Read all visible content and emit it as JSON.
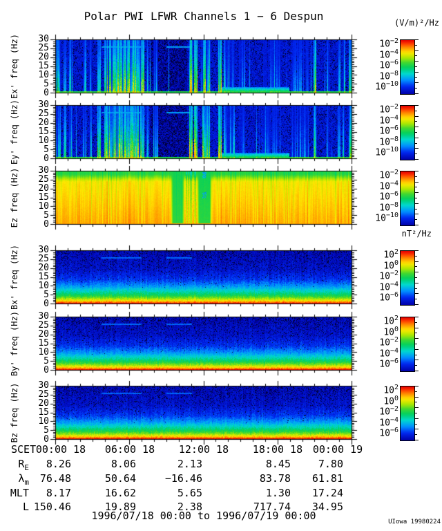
{
  "title": "Polar PWI LFWR Channels 1 − 6 Despun",
  "credit": "UIowa 19980224",
  "date_range": "1996/07/18 00:00 to 1996/07/19 00:00",
  "units": {
    "electric": "(V/m)²/Hz",
    "magnetic": "nT²/Hz"
  },
  "xaxis": {
    "prefix": "SCET",
    "tick_labels": [
      "00:00 18",
      "06:00 18",
      "12:00 18",
      "18:00 18",
      "00:00 19"
    ],
    "tick_hours": [
      0,
      6,
      12,
      18,
      24
    ]
  },
  "ephemeris": {
    "rows": [
      {
        "label": "R",
        "sub": "E",
        "values": [
          "8.26",
          "8.06",
          "2.13",
          "8.45",
          "7.80"
        ]
      },
      {
        "label": "λ",
        "sub": "m",
        "values": [
          "76.48",
          "50.64",
          "−16.46",
          "83.78",
          "61.81"
        ]
      },
      {
        "label": "MLT",
        "sub": "",
        "values": [
          "8.17",
          "16.62",
          "5.65",
          "1.30",
          "17.24"
        ]
      },
      {
        "label": "L",
        "sub": "",
        "values": [
          "150.46",
          "19.89",
          "2.38",
          "717.74",
          "34.95"
        ]
      }
    ]
  },
  "colormap_stops": [
    [
      0,
      "#000000"
    ],
    [
      0.07,
      "#00003a"
    ],
    [
      0.14,
      "#0000a8"
    ],
    [
      0.26,
      "#0028f0"
    ],
    [
      0.36,
      "#0090ff"
    ],
    [
      0.46,
      "#00d8d0"
    ],
    [
      0.56,
      "#00d060"
    ],
    [
      0.64,
      "#40d830"
    ],
    [
      0.72,
      "#b0e800"
    ],
    [
      0.8,
      "#ffe800"
    ],
    [
      0.88,
      "#ff9000"
    ],
    [
      0.95,
      "#ff3000"
    ],
    [
      1,
      "#e00000"
    ]
  ],
  "chart_data": [
    {
      "type": "heatmap",
      "name": "ex",
      "ylabel": "Ex' freq (Hz)",
      "ylim": [
        0,
        30
      ],
      "yticks": [
        0,
        5,
        10,
        15,
        20,
        25,
        30
      ],
      "x_range_hours": [
        0,
        24
      ],
      "unit": "(V/m)²/Hz",
      "colorbar": {
        "base": "10",
        "exponents": [
          "−2",
          "−4",
          "−6",
          "−8",
          "−10"
        ]
      },
      "render": {
        "style": "burst",
        "seed": 101,
        "bursts": [
          [
            0,
            0.018,
            0.6,
            0.85
          ],
          [
            0.026,
            0.036,
            0.5,
            0.9
          ],
          [
            0.046,
            0.056,
            0.45,
            0.9
          ],
          [
            0.093,
            0.104,
            0.4,
            0.7
          ],
          [
            0.112,
            0.122,
            0.45,
            0.7
          ],
          [
            0.14,
            0.152,
            0.75,
            1
          ],
          [
            0.165,
            0.3,
            0.85,
            0.85
          ],
          [
            0.306,
            0.314,
            0.55,
            0.9
          ],
          [
            0.33,
            0.346,
            0.42,
            0.55
          ],
          [
            0.452,
            0.462,
            1,
            1
          ],
          [
            0.468,
            0.478,
            0.95,
            1
          ],
          [
            0.495,
            0.522,
            0.8,
            0.85
          ],
          [
            0.549,
            0.561,
            1,
            1
          ],
          [
            0.568,
            0.606,
            0.5,
            0.55
          ],
          [
            0.618,
            0.64,
            0.3,
            0.5
          ],
          [
            0.7,
            0.76,
            0.25,
            0.45
          ],
          [
            0.795,
            0.855,
            0.3,
            0.45
          ],
          [
            0.871,
            0.879,
            0.9,
            1
          ],
          [
            0.915,
            0.925,
            0.35,
            0.6
          ],
          [
            0.952,
            0.962,
            0.4,
            0.7
          ],
          [
            0.968,
            0.978,
            0.45,
            0.7
          ],
          [
            0.99,
            1,
            0.75,
            0.9
          ]
        ],
        "dark_regions": [
          [
            0.318,
            0.445
          ]
        ],
        "bottom_hump": [
          0.56,
          0.79
        ],
        "hline": {
          "freq": 26,
          "segments": [
            [
              0.155,
              0.29
            ],
            [
              0.375,
              0.46
            ]
          ],
          "boost": 0.36
        }
      }
    },
    {
      "type": "heatmap",
      "name": "ey",
      "ylabel": "Ey' freq (Hz)",
      "ylim": [
        0,
        30
      ],
      "yticks": [
        0,
        5,
        10,
        15,
        20,
        25,
        30
      ],
      "x_range_hours": [
        0,
        24
      ],
      "unit": "(V/m)²/Hz",
      "colorbar": {
        "base": "10",
        "exponents": [
          "−2",
          "−4",
          "−6",
          "−8",
          "−10"
        ]
      },
      "render": {
        "style": "burst",
        "seed": 202,
        "bursts": [
          [
            0,
            0.018,
            0.6,
            0.85
          ],
          [
            0.026,
            0.036,
            0.5,
            0.9
          ],
          [
            0.046,
            0.056,
            0.45,
            0.9
          ],
          [
            0.093,
            0.104,
            0.4,
            0.7
          ],
          [
            0.112,
            0.122,
            0.45,
            0.7
          ],
          [
            0.14,
            0.152,
            0.75,
            1
          ],
          [
            0.165,
            0.3,
            0.85,
            0.85
          ],
          [
            0.306,
            0.314,
            0.55,
            0.9
          ],
          [
            0.33,
            0.346,
            0.42,
            0.55
          ],
          [
            0.452,
            0.462,
            1,
            1
          ],
          [
            0.468,
            0.478,
            0.95,
            1
          ],
          [
            0.495,
            0.522,
            0.8,
            0.85
          ],
          [
            0.549,
            0.561,
            1,
            1
          ],
          [
            0.568,
            0.606,
            0.5,
            0.55
          ],
          [
            0.618,
            0.64,
            0.3,
            0.5
          ],
          [
            0.7,
            0.76,
            0.25,
            0.45
          ],
          [
            0.795,
            0.855,
            0.3,
            0.45
          ],
          [
            0.871,
            0.879,
            0.9,
            1
          ],
          [
            0.915,
            0.925,
            0.35,
            0.6
          ],
          [
            0.952,
            0.962,
            0.4,
            0.7
          ],
          [
            0.968,
            0.978,
            0.45,
            0.7
          ],
          [
            0.99,
            1,
            0.75,
            0.9
          ]
        ],
        "dark_regions": [
          [
            0.318,
            0.445
          ]
        ],
        "bottom_hump": [
          0.56,
          0.79
        ],
        "hline": {
          "freq": 26,
          "segments": [
            [
              0.155,
              0.29
            ],
            [
              0.375,
              0.46
            ]
          ],
          "boost": 0.36
        }
      }
    },
    {
      "type": "heatmap",
      "name": "ez",
      "ylabel": "Ez freq (Hz)",
      "ylim": [
        0,
        30
      ],
      "yticks": [
        0,
        5,
        10,
        15,
        20,
        25,
        30
      ],
      "x_range_hours": [
        0,
        24
      ],
      "unit": "(V/m)²/Hz",
      "colorbar": {
        "base": "10",
        "exponents": [
          "−2",
          "−4",
          "−6",
          "−8",
          "−10"
        ]
      },
      "render": {
        "style": "solid",
        "seed": 303,
        "dips": [
          [
            0.388,
            0.436,
            0.585
          ],
          [
            0.477,
            0.528,
            0.575
          ]
        ],
        "mixed_zone": [
          0.436,
          0.477
        ],
        "spots": [
          [
            0.503,
            0.08
          ],
          [
            0.502,
            0.45
          ]
        ]
      }
    },
    {
      "type": "heatmap",
      "name": "bx",
      "ylabel": "Bx' freq (Hz)",
      "ylim": [
        0,
        30
      ],
      "yticks": [
        0,
        5,
        10,
        15,
        20,
        25,
        30
      ],
      "x_range_hours": [
        0,
        24
      ],
      "unit": "nT²/Hz",
      "colorbar": {
        "base": "10",
        "exponents": [
          "2",
          "0",
          "−2",
          "−4",
          "−6"
        ]
      },
      "render": {
        "style": "mag",
        "seed": 404,
        "profile": [
          [
            0,
            0.17
          ],
          [
            0.35,
            0.2
          ],
          [
            0.55,
            0.27
          ],
          [
            0.68,
            0.38
          ],
          [
            0.78,
            0.5
          ],
          [
            0.85,
            0.6
          ],
          [
            0.9,
            0.7
          ],
          [
            0.94,
            0.8
          ],
          [
            0.97,
            0.9
          ],
          [
            1,
            0.98
          ]
        ],
        "hline": {
          "freq": 26,
          "segments": [
            [
              0.155,
              0.29
            ],
            [
              0.375,
              0.46
            ]
          ],
          "boost": 0.3
        }
      }
    },
    {
      "type": "heatmap",
      "name": "by",
      "ylabel": "By' freq (Hz)",
      "ylim": [
        0,
        30
      ],
      "yticks": [
        0,
        5,
        10,
        15,
        20,
        25,
        30
      ],
      "x_range_hours": [
        0,
        24
      ],
      "unit": "nT²/Hz",
      "colorbar": {
        "base": "10",
        "exponents": [
          "2",
          "0",
          "−2",
          "−4",
          "−6"
        ]
      },
      "render": {
        "style": "mag",
        "seed": 505,
        "profile": [
          [
            0,
            0.17
          ],
          [
            0.35,
            0.2
          ],
          [
            0.55,
            0.27
          ],
          [
            0.68,
            0.38
          ],
          [
            0.78,
            0.5
          ],
          [
            0.85,
            0.6
          ],
          [
            0.9,
            0.7
          ],
          [
            0.94,
            0.8
          ],
          [
            0.97,
            0.9
          ],
          [
            1,
            0.98
          ]
        ],
        "hline": {
          "freq": 26,
          "segments": [
            [
              0.155,
              0.29
            ],
            [
              0.375,
              0.46
            ]
          ],
          "boost": 0.3
        }
      }
    },
    {
      "type": "heatmap",
      "name": "bz",
      "ylabel": "Bz freq (Hz)",
      "ylim": [
        0,
        30
      ],
      "yticks": [
        0,
        5,
        10,
        15,
        20,
        25,
        30
      ],
      "x_range_hours": [
        0,
        24
      ],
      "unit": "nT²/Hz",
      "colorbar": {
        "base": "10",
        "exponents": [
          "2",
          "0",
          "−2",
          "−4",
          "−6"
        ]
      },
      "render": {
        "style": "mag",
        "seed": 606,
        "profile": [
          [
            0,
            0.17
          ],
          [
            0.35,
            0.2
          ],
          [
            0.55,
            0.27
          ],
          [
            0.68,
            0.38
          ],
          [
            0.78,
            0.5
          ],
          [
            0.85,
            0.6
          ],
          [
            0.9,
            0.7
          ],
          [
            0.94,
            0.8
          ],
          [
            0.97,
            0.9
          ],
          [
            1,
            0.98
          ]
        ],
        "hline": {
          "freq": 26,
          "segments": [
            [
              0.155,
              0.29
            ],
            [
              0.375,
              0.46
            ]
          ],
          "boost": 0.3
        }
      }
    }
  ]
}
